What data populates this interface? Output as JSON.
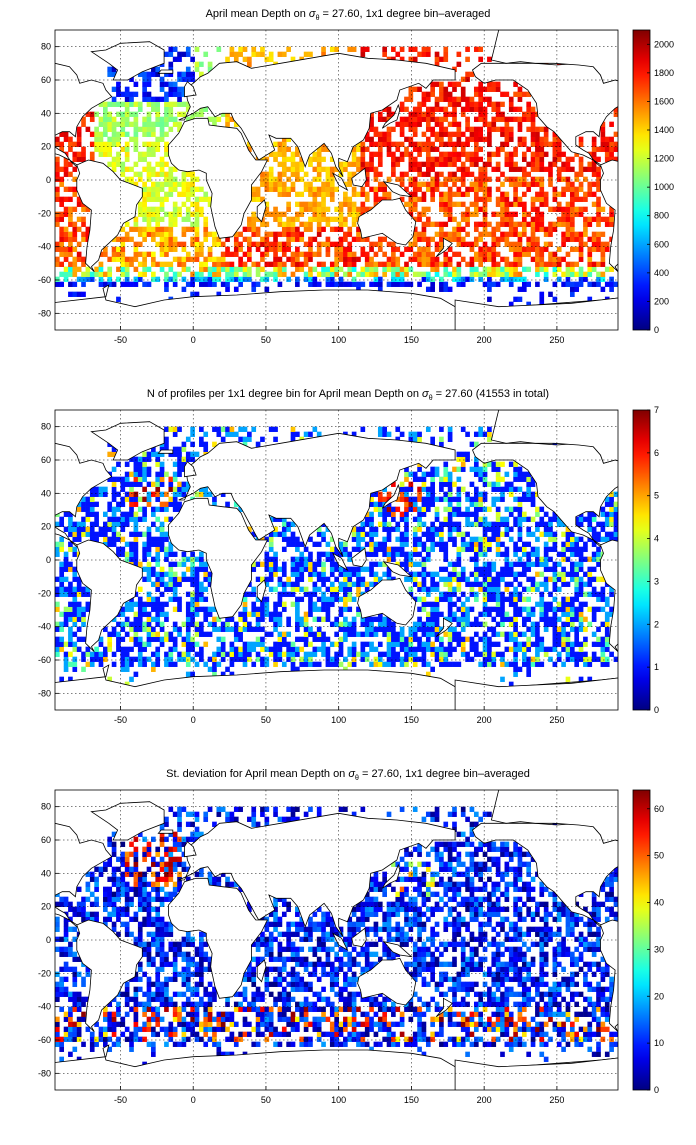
{
  "chart_data": [
    {
      "type": "heatmap",
      "title_pre": "April mean Depth on ",
      "title_sigma": "σ",
      "title_sub": "θ",
      "title_post": " = 27.60, 1x1 degree bin–averaged",
      "xlabel": "",
      "ylabel": "",
      "xlim": [
        -95,
        292
      ],
      "ylim": [
        -90,
        90
      ],
      "xticks": [
        -50,
        0,
        50,
        100,
        150,
        200,
        250
      ],
      "yticks": [
        -80,
        -60,
        -40,
        -20,
        0,
        20,
        40,
        60,
        80
      ],
      "grid": true,
      "colormap": "jet",
      "colorbar": {
        "min": 0,
        "max": 2100,
        "ticks": [
          0,
          200,
          400,
          600,
          800,
          1000,
          1200,
          1400,
          1600,
          1800,
          2000
        ]
      }
    },
    {
      "type": "heatmap",
      "title_pre": "N of profiles per 1x1 degree bin for April mean Depth on ",
      "title_sigma": "σ",
      "title_sub": "θ",
      "title_post": " = 27.60 (41553 in total)",
      "xlabel": "",
      "ylabel": "",
      "xlim": [
        -95,
        292
      ],
      "ylim": [
        -90,
        90
      ],
      "xticks": [
        -50,
        0,
        50,
        100,
        150,
        200,
        250
      ],
      "yticks": [
        -80,
        -60,
        -40,
        -20,
        0,
        20,
        40,
        60,
        80
      ],
      "grid": true,
      "colormap": "jet",
      "colorbar": {
        "min": 0,
        "max": 7,
        "ticks": [
          0,
          1,
          2,
          3,
          4,
          5,
          6,
          7
        ]
      }
    },
    {
      "type": "heatmap",
      "title_pre": "St. deviation for April mean Depth on ",
      "title_sigma": "σ",
      "title_sub": "θ",
      "title_post": " = 27.60, 1x1 degree bin–averaged",
      "xlabel": "",
      "ylabel": "",
      "xlim": [
        -95,
        292
      ],
      "ylim": [
        -90,
        90
      ],
      "xticks": [
        -50,
        0,
        50,
        100,
        150,
        200,
        250
      ],
      "yticks": [
        -80,
        -60,
        -40,
        -20,
        0,
        20,
        40,
        60,
        80
      ],
      "grid": true,
      "colormap": "jet",
      "colorbar": {
        "min": 0,
        "max": 64,
        "ticks": [
          0,
          10,
          20,
          30,
          40,
          50,
          60
        ]
      }
    }
  ]
}
